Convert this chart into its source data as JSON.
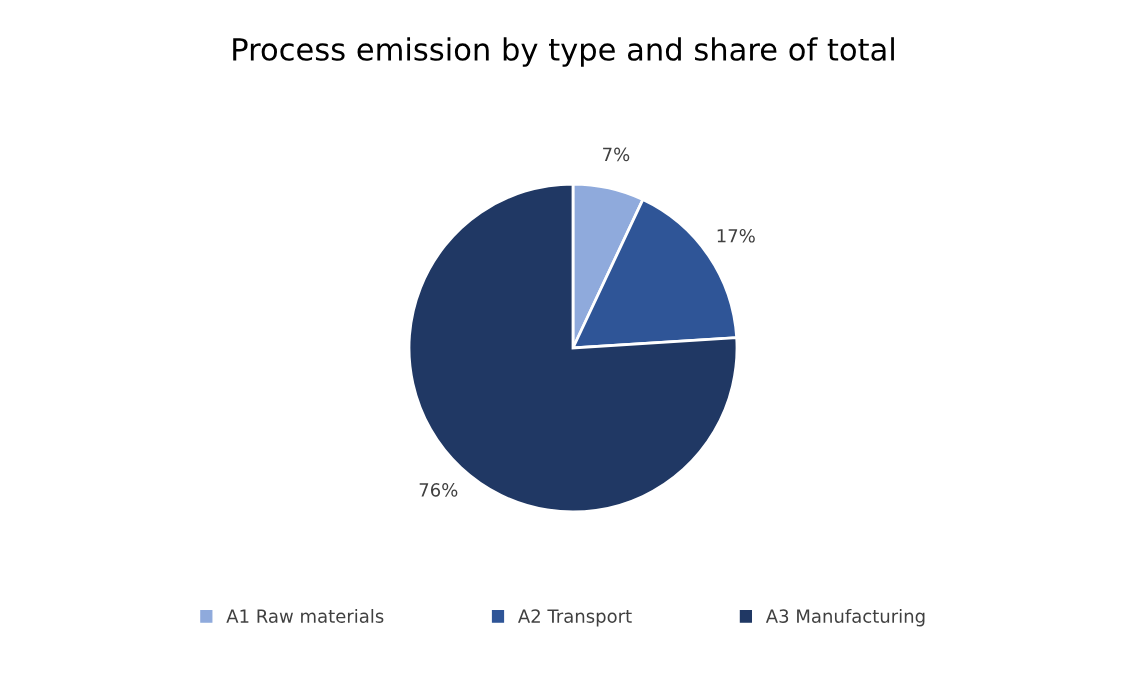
{
  "chart_data": {
    "type": "pie",
    "title": "Process emission by type and share of total",
    "categories": [
      "A1 Raw materials",
      "A2 Transport",
      "A3 Manufacturing"
    ],
    "values": [
      7,
      17,
      76
    ],
    "colors": [
      "#8faadc",
      "#2f5597",
      "#203864"
    ],
    "value_labels": [
      "7%",
      "17%",
      "76%"
    ],
    "legend": "bottom"
  }
}
